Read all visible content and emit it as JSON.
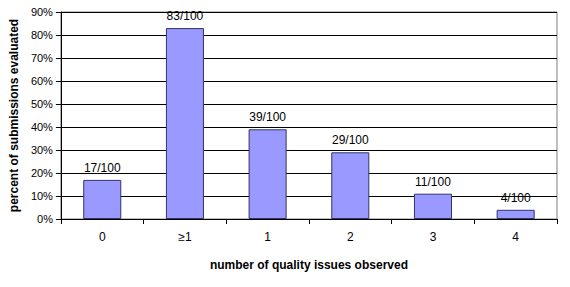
{
  "chart_data": {
    "type": "bar",
    "categories": [
      "0",
      "≥1",
      "1",
      "2",
      "3",
      "4"
    ],
    "values": [
      17,
      83,
      39,
      29,
      11,
      4
    ],
    "value_labels": [
      "17/100",
      "83/100",
      "39/100",
      "29/100",
      "11/100",
      "4/100"
    ],
    "data_labels": true,
    "color": "#9999ff",
    "x_label": "number of quality issues observed",
    "y_label": "percent of submissions evaluated",
    "ylim": [
      0,
      90
    ],
    "yticks": [
      {
        "value": 0,
        "label": "0%"
      },
      {
        "value": 10,
        "label": "10%"
      },
      {
        "value": 20,
        "label": "20%"
      },
      {
        "value": 30,
        "label": "30%"
      },
      {
        "value": 40,
        "label": "40%"
      },
      {
        "value": 50,
        "label": "50%"
      },
      {
        "value": 60,
        "label": "60%"
      },
      {
        "value": 70,
        "label": "70%"
      },
      {
        "value": 80,
        "label": "80%"
      },
      {
        "value": 90,
        "label": "90%"
      }
    ],
    "grid": true
  }
}
